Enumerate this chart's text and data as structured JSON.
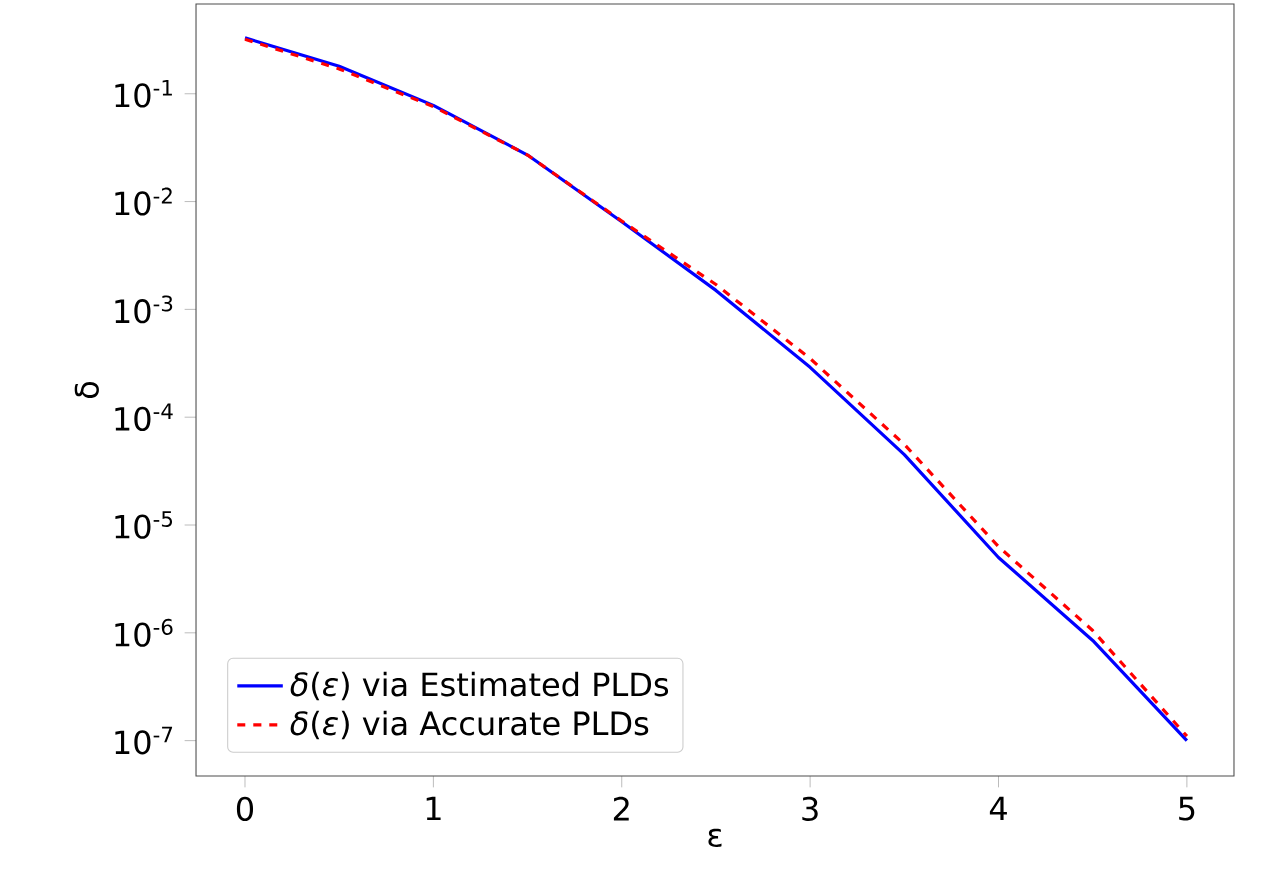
{
  "chart_data": {
    "type": "line",
    "xlabel": "ε",
    "ylabel": "δ",
    "log": "y",
    "legend": "bottom left",
    "grid": false,
    "xlim": [
      -0.26,
      5.25
    ],
    "xticks": [
      0,
      1,
      2,
      3,
      4,
      5
    ],
    "ylim": [
      4.7e-08,
      0.68
    ],
    "yticks": [
      {
        "value": 0.1,
        "label": "10$^{-1}$"
      },
      {
        "value": 0.01,
        "label": "10$^{-2}$"
      },
      {
        "value": 0.001,
        "label": "10$^{-3}$"
      },
      {
        "value": 0.0001,
        "label": "10$^{-4}$"
      },
      {
        "value": 1e-05,
        "label": "10$^{-5}$"
      },
      {
        "value": 1e-06,
        "label": "10$^{-6}$"
      },
      {
        "value": 1e-07,
        "label": "10$^{-7}$"
      }
    ],
    "x": [
      0,
      0.5,
      1,
      1.5,
      2,
      2.5,
      3,
      3.5,
      4,
      4.5,
      5
    ],
    "series": [
      {
        "name": "*δ*(*ε*) via Estimated PLDs",
        "color": "#0000ff",
        "line_style": "solid",
        "values": [
          0.33,
          0.18,
          0.078,
          0.027,
          0.0065,
          0.0015,
          0.00029,
          4.5e-05,
          5e-06,
          8.5e-07,
          1e-07
        ]
      },
      {
        "name": "*δ*(*ε*) via Accurate PLDs",
        "color": "#ff0000",
        "line_style": "dashed",
        "values": [
          0.32,
          0.17,
          0.076,
          0.027,
          0.0066,
          0.0017,
          0.00035,
          5.6e-05,
          6.3e-06,
          1.05e-06,
          1.1e-07
        ]
      }
    ]
  }
}
